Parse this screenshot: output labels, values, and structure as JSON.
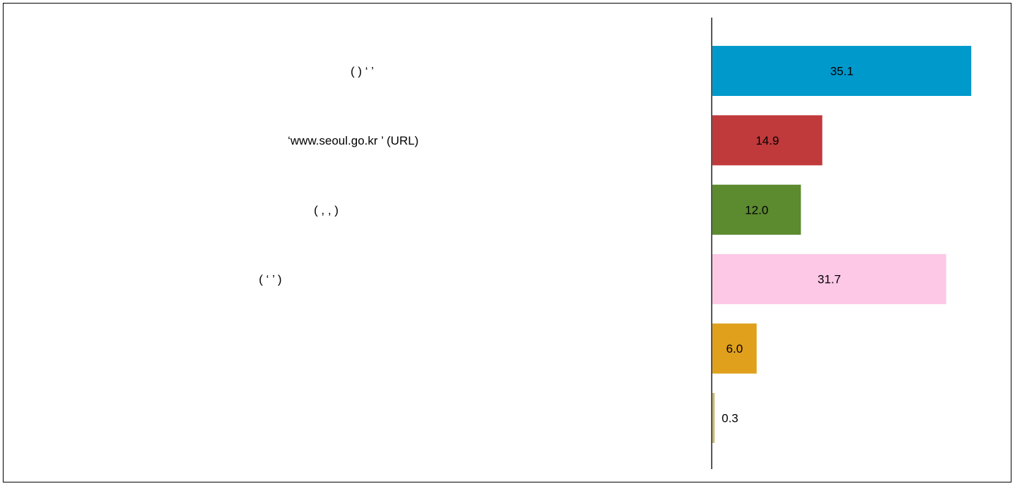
{
  "chart_data": {
    "type": "bar",
    "orientation": "horizontal",
    "categories": [
      "(              )        ‘          ’",
      "‘www.seoul.go.kr ’                              (URL)",
      "(             ,                  ,                                        )",
      "( ‘                     ’  )",
      "",
      ""
    ],
    "values": [
      35.1,
      14.9,
      12.0,
      31.7,
      6.0,
      0.3
    ],
    "value_labels": [
      "35.1",
      "14.9",
      "12.0",
      "31.7",
      "6.0",
      "0.3"
    ],
    "colors": [
      "#0099cc",
      "#c0393b",
      "#5c8a2f",
      "#fcc8e6",
      "#e0a01c",
      "#c8b870"
    ],
    "title": "",
    "xlabel": "",
    "ylabel": "",
    "xlim": [
      0,
      40
    ],
    "grid": false,
    "legend": "none"
  }
}
